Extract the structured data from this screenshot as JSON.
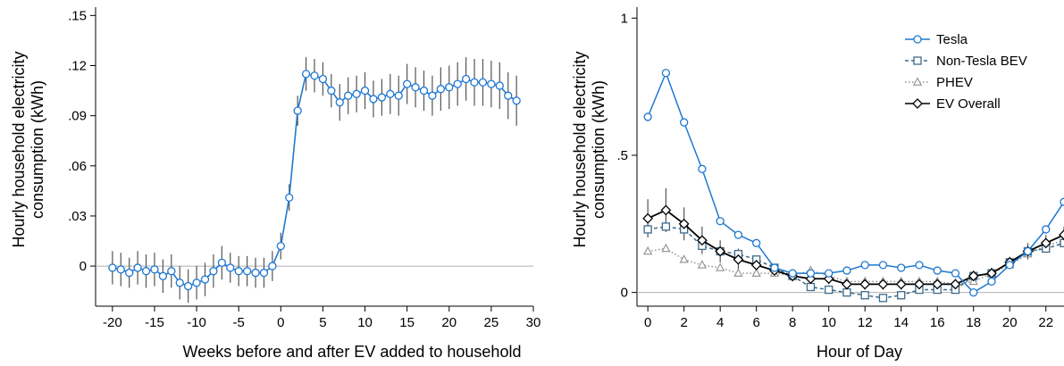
{
  "chart_data": [
    {
      "type": "line",
      "xlabel": "Weeks before and after EV added to household",
      "ylabel": [
        "Hourly household electricity",
        "consumption (kWh)"
      ],
      "xlim": [
        -22,
        30
      ],
      "ylim": [
        -0.024,
        0.155
      ],
      "xticks": [
        -20,
        -15,
        -10,
        -5,
        0,
        5,
        10,
        15,
        20,
        25,
        30
      ],
      "yticks": [
        0,
        0.03,
        0.06,
        0.09,
        0.12,
        0.15
      ],
      "ytick_labels": [
        "0",
        ".03",
        ".06",
        ".09",
        ".12",
        ".15"
      ],
      "reference_line_y": 0,
      "colors": {
        "series": "#1f78d1",
        "error_bars": "#555555",
        "reference": "#b0b0b0"
      },
      "series": [
        {
          "marker": "circle",
          "x": [
            -20,
            -19,
            -18,
            -17,
            -16,
            -15,
            -14,
            -13,
            -12,
            -11,
            -10,
            -9,
            -8,
            -7,
            -6,
            -5,
            -4,
            -3,
            -2,
            -1,
            0,
            1,
            2,
            3,
            4,
            5,
            6,
            7,
            8,
            9,
            10,
            11,
            12,
            13,
            14,
            15,
            16,
            17,
            18,
            19,
            20,
            21,
            22,
            23,
            24,
            25,
            26,
            27,
            28
          ],
          "values": [
            -0.001,
            -0.002,
            -0.004,
            -0.001,
            -0.003,
            -0.002,
            -0.006,
            -0.003,
            -0.01,
            -0.012,
            -0.01,
            -0.008,
            -0.003,
            0.002,
            -0.001,
            -0.003,
            -0.003,
            -0.004,
            -0.004,
            0.0,
            0.012,
            0.041,
            0.093,
            0.115,
            0.114,
            0.112,
            0.105,
            0.098,
            0.102,
            0.103,
            0.105,
            0.1,
            0.101,
            0.103,
            0.102,
            0.109,
            0.107,
            0.105,
            0.102,
            0.106,
            0.107,
            0.109,
            0.112,
            0.11,
            0.11,
            0.109,
            0.108,
            0.102,
            0.099
          ],
          "err": [
            0.01,
            0.01,
            0.009,
            0.01,
            0.01,
            0.01,
            0.01,
            0.01,
            0.01,
            0.01,
            0.01,
            0.01,
            0.01,
            0.01,
            0.009,
            0.009,
            0.009,
            0.009,
            0.009,
            0.009,
            0.008,
            0.008,
            0.009,
            0.01,
            0.01,
            0.01,
            0.01,
            0.011,
            0.011,
            0.011,
            0.011,
            0.011,
            0.011,
            0.012,
            0.012,
            0.012,
            0.012,
            0.012,
            0.012,
            0.013,
            0.013,
            0.013,
            0.013,
            0.014,
            0.014,
            0.014,
            0.014,
            0.014,
            0.015
          ]
        }
      ]
    },
    {
      "type": "line",
      "xlabel": "Hour of Day",
      "ylabel": [
        "Hourly household electricity",
        "consumption (kWh)"
      ],
      "xlim": [
        -0.6,
        23
      ],
      "ylim": [
        -0.05,
        1.04
      ],
      "xticks": [
        0,
        2,
        4,
        6,
        8,
        10,
        12,
        14,
        16,
        18,
        20,
        22
      ],
      "yticks": [
        0,
        0.5,
        1
      ],
      "ytick_labels": [
        "0",
        ".5",
        "1"
      ],
      "reference_line_y": 0,
      "legend_position": "top-right",
      "x": [
        0,
        1,
        2,
        3,
        4,
        5,
        6,
        7,
        8,
        9,
        10,
        11,
        12,
        13,
        14,
        15,
        16,
        17,
        18,
        19,
        20,
        21,
        22,
        23
      ],
      "series": [
        {
          "name": "Tesla",
          "marker": "circle",
          "color": "#1f78d1",
          "line": "solid",
          "values": [
            0.64,
            0.8,
            0.62,
            0.45,
            0.26,
            0.21,
            0.18,
            0.09,
            0.07,
            0.07,
            0.07,
            0.08,
            0.1,
            0.1,
            0.09,
            0.1,
            0.08,
            0.07,
            0.0,
            0.04,
            0.1,
            0.15,
            0.23,
            0.33
          ]
        },
        {
          "name": "Non-Tesla BEV",
          "marker": "square",
          "color": "#3d6a8a",
          "line": "dashed",
          "values": [
            0.23,
            0.24,
            0.23,
            0.17,
            0.15,
            0.14,
            0.12,
            0.09,
            0.06,
            0.02,
            0.01,
            0.0,
            -0.01,
            -0.02,
            -0.01,
            0.01,
            0.01,
            0.01,
            0.06,
            0.07,
            0.11,
            0.15,
            0.16,
            0.18
          ]
        },
        {
          "name": "PHEV",
          "marker": "triangle",
          "color": "#909090",
          "line": "dotted",
          "values": [
            0.15,
            0.16,
            0.12,
            0.1,
            0.09,
            0.07,
            0.07,
            0.07,
            0.06,
            0.08,
            0.06,
            0.04,
            0.04,
            0.04,
            0.04,
            0.04,
            0.04,
            0.03,
            0.04,
            0.07,
            0.1,
            0.14,
            0.17,
            0.19
          ]
        },
        {
          "name": "EV Overall",
          "marker": "diamond",
          "color": "#000000",
          "line": "solid",
          "values": [
            0.27,
            0.3,
            0.25,
            0.19,
            0.15,
            0.12,
            0.1,
            0.08,
            0.06,
            0.05,
            0.05,
            0.03,
            0.03,
            0.03,
            0.03,
            0.03,
            0.03,
            0.03,
            0.06,
            0.07,
            0.11,
            0.15,
            0.18,
            0.21
          ]
        }
      ],
      "err": [
        0.07,
        0.08,
        0.06,
        0.05,
        0.04,
        0.04,
        0.03,
        0.02,
        0.02,
        0.02,
        0.02,
        0.02,
        0.02,
        0.02,
        0.02,
        0.02,
        0.02,
        0.02,
        0.02,
        0.02,
        0.02,
        0.03,
        0.03,
        0.03
      ]
    }
  ]
}
